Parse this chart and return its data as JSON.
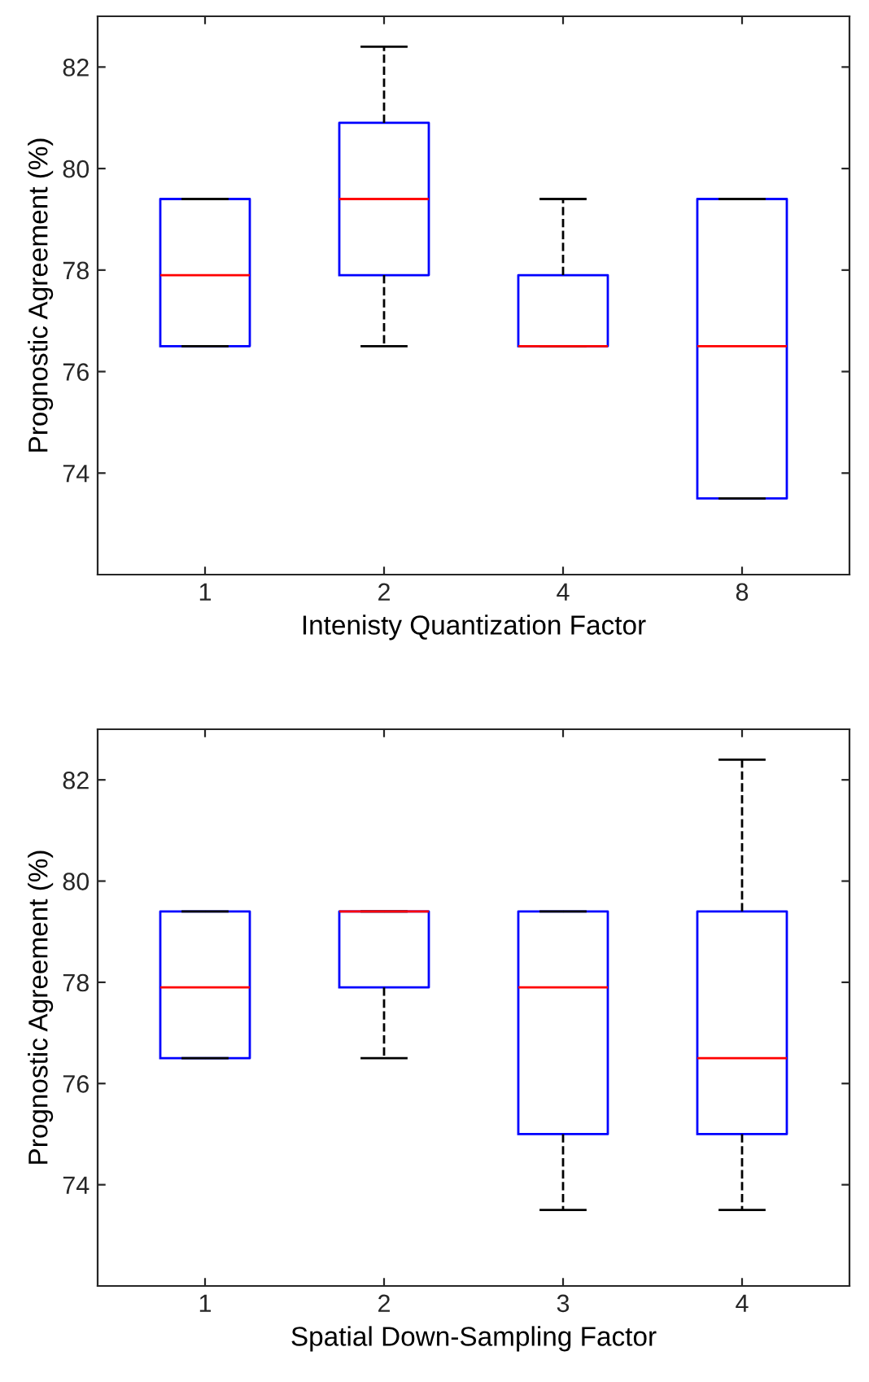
{
  "chart_data": [
    {
      "type": "box",
      "xlabel": "Intenisty Quantization Factor",
      "ylabel": "Prognostic Agreement (%)",
      "categories": [
        "1",
        "2",
        "4",
        "8"
      ],
      "color": "#0000ff",
      "ylim": [
        72,
        83
      ],
      "yticks": [
        74,
        76,
        78,
        80,
        82
      ],
      "line_style": "dashed",
      "boxes": [
        {
          "low": 76.5,
          "q1": 76.5,
          "median": 77.9,
          "q3": 79.4,
          "high": 79.4
        },
        {
          "low": 76.5,
          "q1": 77.9,
          "median": 79.4,
          "q3": 80.9,
          "high": 82.4
        },
        {
          "low": 76.5,
          "q1": 76.5,
          "median": 76.5,
          "q3": 77.9,
          "high": 79.4
        },
        {
          "low": 73.5,
          "q1": 73.5,
          "median": 76.5,
          "q3": 79.4,
          "high": 79.4
        }
      ]
    },
    {
      "type": "box",
      "xlabel": "Spatial Down-Sampling Factor",
      "ylabel": "Prognostic Agreement (%)",
      "categories": [
        "1",
        "2",
        "3",
        "4"
      ],
      "color": "#0000ff",
      "ylim": [
        72,
        83
      ],
      "yticks": [
        74,
        76,
        78,
        80,
        82
      ],
      "line_style": "dashed",
      "boxes": [
        {
          "low": 76.5,
          "q1": 76.5,
          "median": 77.9,
          "q3": 79.4,
          "high": 79.4
        },
        {
          "low": 76.5,
          "q1": 77.9,
          "median": 79.4,
          "q3": 79.4,
          "high": 79.4
        },
        {
          "low": 73.5,
          "q1": 75.0,
          "median": 77.9,
          "q3": 79.4,
          "high": 79.4
        },
        {
          "low": 73.5,
          "q1": 75.0,
          "median": 76.5,
          "q3": 79.4,
          "high": 82.4
        }
      ]
    }
  ]
}
